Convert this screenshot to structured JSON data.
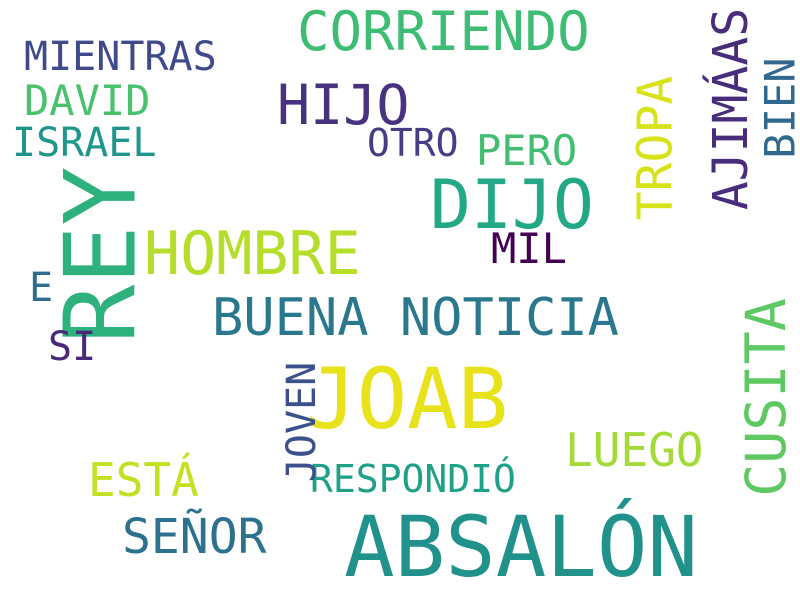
{
  "words": [
    {
      "id": "absalon",
      "text": "ABSALÓN",
      "color": "#21918c"
    },
    {
      "id": "rey",
      "text": "REY",
      "color": "#2db27d"
    },
    {
      "id": "joab",
      "text": "JOAB",
      "color": "#e8e21a"
    },
    {
      "id": "dijo",
      "text": "DIJO",
      "color": "#22a884"
    },
    {
      "id": "hombre",
      "text": "HOMBRE",
      "color": "#b5de2b"
    },
    {
      "id": "buena-noticia",
      "text": "BUENA NOTICIA",
      "color": "#2a788e"
    },
    {
      "id": "cusita",
      "text": "CUSITA",
      "color": "#5ec962"
    },
    {
      "id": "hijo",
      "text": "HIJO",
      "color": "#46327e"
    },
    {
      "id": "corriendo",
      "text": "CORRIENDO",
      "color": "#3fbc73"
    },
    {
      "id": "tropa",
      "text": "TROPA",
      "color": "#d8e219"
    },
    {
      "id": "ajimaas",
      "text": "AJIMÁAS",
      "color": "#472d7b"
    },
    {
      "id": "senor",
      "text": "SEÑOR",
      "color": "#2c718e"
    },
    {
      "id": "luego",
      "text": "LUEGO",
      "color": "#a2da37"
    },
    {
      "id": "esta",
      "text": "ESTÁ",
      "color": "#c5e021"
    },
    {
      "id": "respondio",
      "text": "RESPONDIÓ",
      "color": "#1fa187"
    },
    {
      "id": "joven",
      "text": "JOVEN",
      "color": "#3b518b"
    },
    {
      "id": "bien",
      "text": "BIEN",
      "color": "#31688e"
    },
    {
      "id": "mientras",
      "text": "MIENTRAS",
      "color": "#3e4a89"
    },
    {
      "id": "david",
      "text": "DAVID",
      "color": "#4ac16d"
    },
    {
      "id": "israel",
      "text": "ISRAEL",
      "color": "#1f968b"
    },
    {
      "id": "pero",
      "text": "PERO",
      "color": "#42be71"
    },
    {
      "id": "otro",
      "text": "OTRO",
      "color": "#433e85"
    },
    {
      "id": "mil",
      "text": "MIL",
      "color": "#440154"
    },
    {
      "id": "e",
      "text": "E",
      "color": "#2f6c8e"
    },
    {
      "id": "si",
      "text": "SI",
      "color": "#482878"
    }
  ]
}
